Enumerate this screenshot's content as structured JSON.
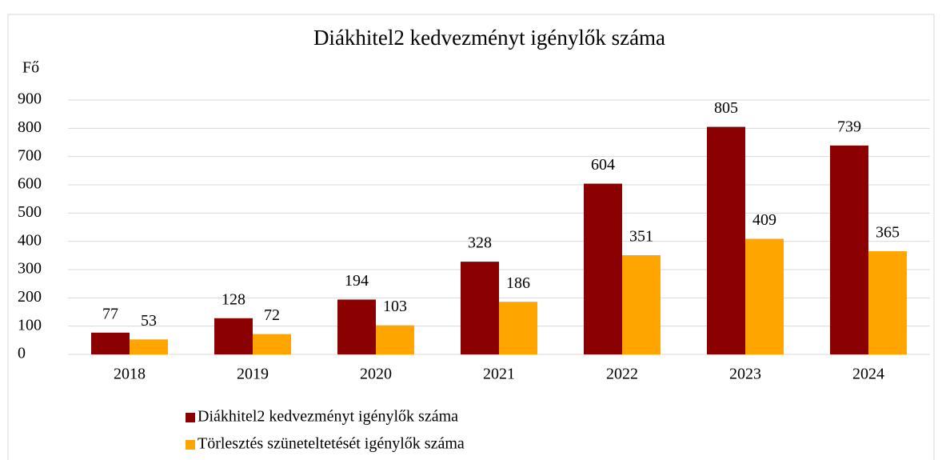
{
  "chart_data": {
    "type": "bar",
    "title": "Diákhitel2 kedvezményt igénylők száma",
    "y_label": "Fő",
    "categories": [
      "2018",
      "2019",
      "2020",
      "2021",
      "2022",
      "2023",
      "2024"
    ],
    "series": [
      {
        "name": "Diákhitel2 kedvezményt igénylők száma",
        "color": "#8b0000",
        "values": [
          77,
          128,
          194,
          328,
          604,
          805,
          739
        ]
      },
      {
        "name": "Törlesztés szüneteltetését igénylők száma",
        "color": "#ffa500",
        "values": [
          53,
          72,
          103,
          186,
          351,
          409,
          365
        ]
      }
    ],
    "ylim": [
      0,
      900
    ],
    "yticks": [
      0,
      100,
      200,
      300,
      400,
      500,
      600,
      700,
      800,
      900
    ],
    "grid": true,
    "legend": "bottom"
  }
}
